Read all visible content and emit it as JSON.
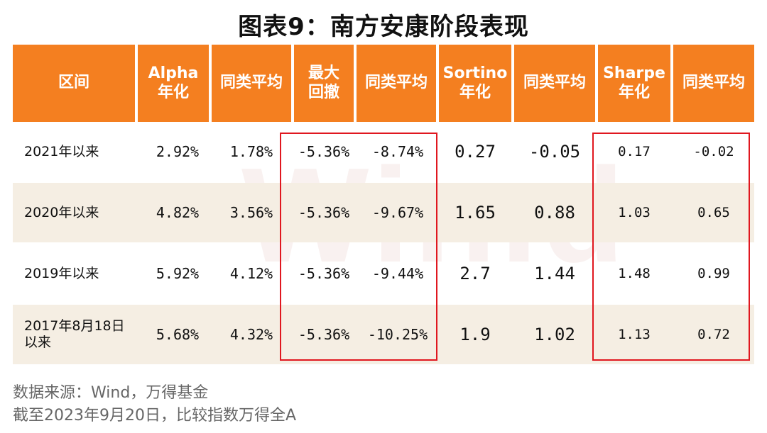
{
  "title": "图表9：南方安康阶段表现",
  "watermark": "Win.d",
  "headers": {
    "col1": "区间",
    "col2_line1": "Alpha",
    "col2_line2": "年化",
    "col3": "同类平均",
    "col4_line1": "最大",
    "col4_line2": "回撤",
    "col5": "同类平均",
    "col6_line1": "Sortino",
    "col6_line2": "年化",
    "col7": "同类平均",
    "col8_line1": "Sharpe",
    "col8_line2": "年化",
    "col9": "同类平均"
  },
  "rows": [
    {
      "period_line1": "2021年以来",
      "period_line2": "",
      "alpha": "2.92%",
      "alpha_avg": "1.78%",
      "mdd": "-5.36%",
      "mdd_avg": "-8.74%",
      "sortino": "0.27",
      "sortino_avg": "-0.05",
      "sharpe": "0.17",
      "sharpe_avg": "-0.02"
    },
    {
      "period_line1": "2020年以来",
      "period_line2": "",
      "alpha": "4.82%",
      "alpha_avg": "3.56%",
      "mdd": "-5.36%",
      "mdd_avg": "-9.67%",
      "sortino": "1.65",
      "sortino_avg": "0.88",
      "sharpe": "1.03",
      "sharpe_avg": "0.65"
    },
    {
      "period_line1": "2019年以来",
      "period_line2": "",
      "alpha": "5.92%",
      "alpha_avg": "4.12%",
      "mdd": "-5.36%",
      "mdd_avg": "-9.44%",
      "sortino": "2.7",
      "sortino_avg": "1.44",
      "sharpe": "1.48",
      "sharpe_avg": "0.99"
    },
    {
      "period_line1": "2017年8月18日",
      "period_line2": "以来",
      "alpha": "5.68%",
      "alpha_avg": "4.32%",
      "mdd": "-5.36%",
      "mdd_avg": "-10.25%",
      "sortino": "1.9",
      "sortino_avg": "1.02",
      "sharpe": "1.13",
      "sharpe_avg": "0.72"
    }
  ],
  "notes": {
    "source": "数据来源：Wind，万得基金",
    "asof": "截至2023年9月20日，比较指数万得全A"
  },
  "colors": {
    "header_bg": "#f47f20",
    "row_shade": "#f5eee3",
    "highlight_border": "#e0171f"
  }
}
